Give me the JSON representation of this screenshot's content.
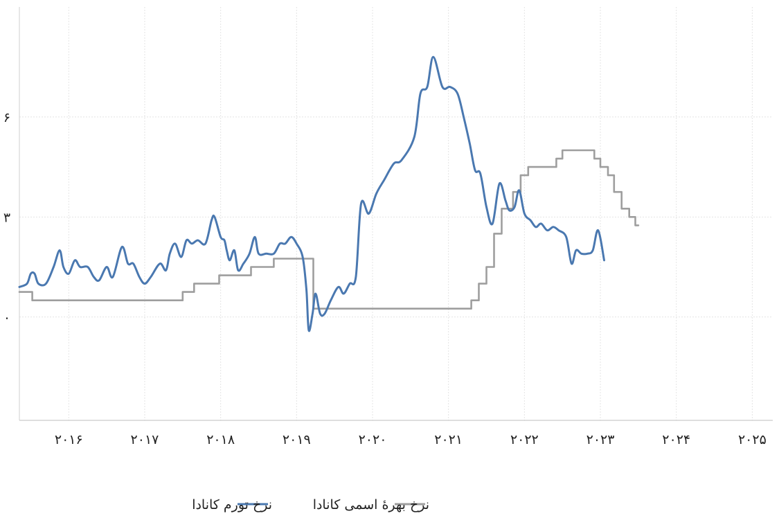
{
  "chart_data": {
    "type": "line",
    "title": "",
    "xlabel": "",
    "ylabel": "",
    "x_axis_labels": [
      "۲۰۱۶",
      "۲۰۱۷",
      "۲۰۱۸",
      "۲۰۱۹",
      "۲۰۲۰",
      "۲۰۲۱",
      "۲۰۲۲",
      "۲۰۲۳",
      "۲۰۲۴",
      "۲۰۲۵"
    ],
    "x_axis_years": [
      2016,
      2017,
      2018,
      2019,
      2020,
      2021,
      2022,
      2023,
      2024,
      2025
    ],
    "y_ticks": [
      {
        "value": 0,
        "label": "۰"
      },
      {
        "value": 3,
        "label": "۳"
      },
      {
        "value": 6,
        "label": "۶"
      }
    ],
    "xlim": [
      2015.35,
      2025.27
    ],
    "ylim": [
      -3.1,
      9.3
    ],
    "grid": true,
    "legend_position": "bottom",
    "series": [
      {
        "name": "نرخ تورم کانادا",
        "color": "#4a78b0",
        "interpolation": "smooth",
        "points": [
          [
            2015.35,
            0.9
          ],
          [
            2015.45,
            1.0
          ],
          [
            2015.5,
            1.3
          ],
          [
            2015.55,
            1.3
          ],
          [
            2015.6,
            1.0
          ],
          [
            2015.7,
            1.0
          ],
          [
            2015.8,
            1.5
          ],
          [
            2015.88,
            2.0
          ],
          [
            2015.93,
            1.5
          ],
          [
            2016.0,
            1.3
          ],
          [
            2016.08,
            1.7
          ],
          [
            2016.15,
            1.5
          ],
          [
            2016.25,
            1.5
          ],
          [
            2016.33,
            1.2
          ],
          [
            2016.4,
            1.1
          ],
          [
            2016.5,
            1.5
          ],
          [
            2016.58,
            1.2
          ],
          [
            2016.7,
            2.1
          ],
          [
            2016.78,
            1.6
          ],
          [
            2016.85,
            1.6
          ],
          [
            2016.93,
            1.2
          ],
          [
            2017.0,
            1.0
          ],
          [
            2017.08,
            1.2
          ],
          [
            2017.2,
            1.6
          ],
          [
            2017.28,
            1.4
          ],
          [
            2017.33,
            1.9
          ],
          [
            2017.4,
            2.2
          ],
          [
            2017.48,
            1.8
          ],
          [
            2017.55,
            2.3
          ],
          [
            2017.62,
            2.2
          ],
          [
            2017.7,
            2.3
          ],
          [
            2017.8,
            2.2
          ],
          [
            2017.88,
            2.9
          ],
          [
            2017.92,
            3.0
          ],
          [
            2018.0,
            2.4
          ],
          [
            2018.05,
            2.3
          ],
          [
            2018.08,
            2.0
          ],
          [
            2018.12,
            1.7
          ],
          [
            2018.18,
            2.0
          ],
          [
            2018.23,
            1.4
          ],
          [
            2018.3,
            1.6
          ],
          [
            2018.38,
            1.9
          ],
          [
            2018.45,
            2.4
          ],
          [
            2018.5,
            1.9
          ],
          [
            2018.6,
            1.9
          ],
          [
            2018.7,
            1.9
          ],
          [
            2018.78,
            2.2
          ],
          [
            2018.85,
            2.2
          ],
          [
            2018.93,
            2.4
          ],
          [
            2019.0,
            2.2
          ],
          [
            2019.08,
            1.8
          ],
          [
            2019.13,
            0.8
          ],
          [
            2019.16,
            -0.4
          ],
          [
            2019.21,
            0.1
          ],
          [
            2019.25,
            0.7
          ],
          [
            2019.31,
            0.1
          ],
          [
            2019.37,
            0.1
          ],
          [
            2019.45,
            0.5
          ],
          [
            2019.55,
            0.9
          ],
          [
            2019.62,
            0.7
          ],
          [
            2019.7,
            1.0
          ],
          [
            2019.78,
            1.2
          ],
          [
            2019.85,
            3.4
          ],
          [
            2019.95,
            3.1
          ],
          [
            2020.05,
            3.7
          ],
          [
            2020.15,
            4.1
          ],
          [
            2020.28,
            4.6
          ],
          [
            2020.38,
            4.7
          ],
          [
            2020.55,
            5.4
          ],
          [
            2020.63,
            6.7
          ],
          [
            2020.72,
            6.9
          ],
          [
            2020.8,
            7.8
          ],
          [
            2020.92,
            6.9
          ],
          [
            2021.02,
            6.9
          ],
          [
            2021.12,
            6.7
          ],
          [
            2021.2,
            6.0
          ],
          [
            2021.28,
            5.2
          ],
          [
            2021.35,
            4.4
          ],
          [
            2021.42,
            4.3
          ],
          [
            2021.5,
            3.3
          ],
          [
            2021.58,
            2.8
          ],
          [
            2021.67,
            4.0
          ],
          [
            2021.75,
            3.5
          ],
          [
            2021.8,
            3.2
          ],
          [
            2021.87,
            3.3
          ],
          [
            2021.93,
            3.8
          ],
          [
            2022.0,
            3.1
          ],
          [
            2022.08,
            2.9
          ],
          [
            2022.15,
            2.7
          ],
          [
            2022.22,
            2.8
          ],
          [
            2022.3,
            2.6
          ],
          [
            2022.38,
            2.7
          ],
          [
            2022.45,
            2.6
          ],
          [
            2022.55,
            2.4
          ],
          [
            2022.62,
            1.6
          ],
          [
            2022.68,
            2.0
          ],
          [
            2022.75,
            1.9
          ],
          [
            2022.83,
            1.9
          ],
          [
            2022.9,
            2.0
          ],
          [
            2022.97,
            2.6
          ],
          [
            2023.05,
            1.7
          ]
        ]
      },
      {
        "name": "نرخ بهرهٔ اسمی کانادا",
        "color": "#9e9e9e",
        "interpolation": "step",
        "points": [
          [
            2015.35,
            0.75
          ],
          [
            2015.52,
            0.5
          ],
          [
            2017.5,
            0.75
          ],
          [
            2017.65,
            1.0
          ],
          [
            2017.98,
            1.25
          ],
          [
            2018.4,
            1.5
          ],
          [
            2018.7,
            1.75
          ],
          [
            2018.85,
            1.75
          ],
          [
            2019.2,
            1.75
          ],
          [
            2019.22,
            0.25
          ],
          [
            2021.2,
            0.25
          ],
          [
            2021.3,
            0.5
          ],
          [
            2021.4,
            1.0
          ],
          [
            2021.5,
            1.5
          ],
          [
            2021.6,
            2.5
          ],
          [
            2021.7,
            3.25
          ],
          [
            2021.85,
            3.75
          ],
          [
            2021.95,
            4.25
          ],
          [
            2022.05,
            4.5
          ],
          [
            2022.42,
            4.75
          ],
          [
            2022.5,
            5.0
          ],
          [
            2022.88,
            5.0
          ],
          [
            2022.92,
            4.75
          ],
          [
            2023.0,
            4.5
          ],
          [
            2023.1,
            4.25
          ],
          [
            2023.18,
            3.75
          ],
          [
            2023.28,
            3.25
          ],
          [
            2023.38,
            3.0
          ],
          [
            2023.46,
            2.75
          ],
          [
            2023.5,
            2.75
          ]
        ]
      }
    ]
  }
}
